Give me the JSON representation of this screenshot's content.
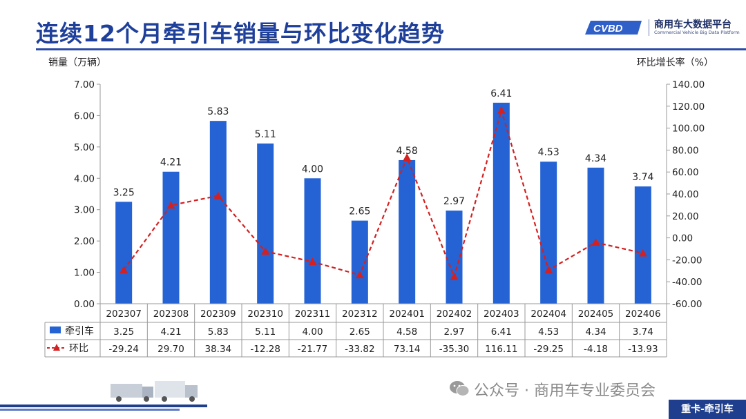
{
  "header": {
    "title": "连续12个月牵引车销量与环比变化趋势",
    "logo_cn": "商用车大数据平台",
    "logo_en": "Commercial Vehicle Big Data Platform",
    "logo_badge": "CVBD"
  },
  "footer": {
    "wechat_text": "公众号 · 商用车专业委员会",
    "tag": "重卡-牵引车"
  },
  "chart_data": {
    "type": "bar",
    "categories": [
      "202307",
      "202308",
      "202309",
      "202310",
      "202311",
      "202312",
      "202401",
      "202402",
      "202403",
      "202404",
      "202405",
      "202406"
    ],
    "series": [
      {
        "name": "牵引车",
        "type": "bar",
        "axis": "left",
        "values": [
          3.25,
          4.21,
          5.83,
          5.11,
          4.0,
          2.65,
          4.58,
          2.97,
          6.41,
          4.53,
          4.34,
          3.74
        ],
        "labels": [
          "3.25",
          "4.21",
          "5.83",
          "5.11",
          "4.00",
          "2.65",
          "4.58",
          "2.97",
          "6.41",
          "4.53",
          "4.34",
          "3.74"
        ],
        "color": "#2563d4"
      },
      {
        "name": "环比",
        "type": "line",
        "axis": "right",
        "values": [
          -29.24,
          29.7,
          38.34,
          -12.28,
          -21.77,
          -33.82,
          73.14,
          -35.3,
          116.11,
          -29.25,
          -4.18,
          -13.93
        ],
        "labels": [
          "-29.24",
          "29.70",
          "38.34",
          "-12.28",
          "-21.77",
          "-33.82",
          "73.14",
          "-35.30",
          "116.11",
          "-29.25",
          "-4.18",
          "-13.93"
        ],
        "color": "#d42020",
        "style": "dashed",
        "marker": "triangle"
      }
    ],
    "ylabel": "销量（万辆）",
    "y2label": "环比增长率（%）",
    "ylim": [
      0,
      7
    ],
    "y2lim": [
      -60,
      140
    ],
    "yticks": [
      "0.00",
      "1.00",
      "2.00",
      "3.00",
      "4.00",
      "5.00",
      "6.00",
      "7.00"
    ],
    "y2ticks": [
      "-60.00",
      "-40.00",
      "-20.00",
      "0.00",
      "20.00",
      "40.00",
      "60.00",
      "80.00",
      "100.00",
      "120.00",
      "140.00"
    ],
    "grid": false,
    "data_table": true
  }
}
